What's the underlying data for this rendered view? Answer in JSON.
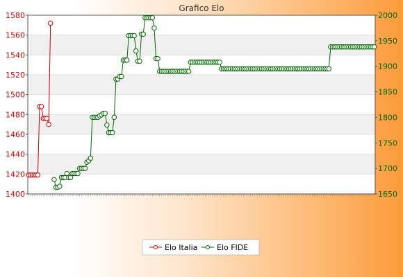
{
  "chart_data": {
    "type": "line",
    "title": "Grafico Elo",
    "xlabel": "",
    "ylabel": "",
    "grid": true,
    "legend": "bottom-center",
    "y_left": {
      "min": 1400,
      "max": 1580,
      "ticks": [
        1400,
        1420,
        1440,
        1460,
        1480,
        1500,
        1520,
        1540,
        1560,
        1580
      ],
      "color": "#cc0000"
    },
    "y_right": {
      "min": 1650,
      "max": 2000,
      "ticks": [
        1650,
        1700,
        1750,
        1800,
        1850,
        1900,
        1950,
        2000
      ],
      "color": "#006600"
    },
    "series": [
      {
        "name": "Elo Italia",
        "axis": "left",
        "color": "#cc0000",
        "values": [
          1419,
          1419,
          1419,
          1419,
          1419,
          1419,
          1488,
          1488,
          1476,
          1476,
          1476,
          1470,
          1572
        ]
      },
      {
        "name": "Elo FIDE",
        "axis": "right",
        "color": "#006600",
        "values": [
          null,
          null,
          null,
          null,
          null,
          null,
          null,
          null,
          null,
          null,
          null,
          null,
          null,
          null,
          1678,
          1663,
          1663,
          1665,
          1682,
          1682,
          1682,
          1690,
          1682,
          1682,
          1690,
          1690,
          1690,
          1690,
          1700,
          1700,
          1700,
          1700,
          1712,
          1715,
          1720,
          1800,
          1800,
          1800,
          1800,
          1803,
          1805,
          1808,
          1808,
          1785,
          1770,
          1770,
          1770,
          1800,
          1875,
          1875,
          1880,
          1880,
          1912,
          1912,
          1912,
          1960,
          1960,
          1960,
          1960,
          1930,
          1910,
          1910,
          1963,
          1963,
          1995,
          1995,
          1995,
          1995,
          1995,
          1975,
          1915,
          1915,
          1890,
          1890,
          1890,
          1890,
          1890,
          1890,
          1890,
          1890,
          1890,
          1890,
          1890,
          1890,
          1890,
          1890,
          1890,
          1890,
          1890,
          1908,
          1908,
          1908,
          1908,
          1908,
          1908,
          1908,
          1908,
          1908,
          1908,
          1908,
          1908,
          1908,
          1908,
          1908,
          1908,
          1908,
          1895,
          1895,
          1895,
          1895,
          1895,
          1895,
          1895,
          1895,
          1895,
          1895,
          1895,
          1895,
          1895,
          1895,
          1895,
          1895,
          1895,
          1895,
          1895,
          1895,
          1895,
          1895,
          1895,
          1895,
          1895,
          1895,
          1895,
          1895,
          1895,
          1895,
          1895,
          1895,
          1895,
          1895,
          1895,
          1895,
          1895,
          1895,
          1895,
          1895,
          1895,
          1895,
          1895,
          1895,
          1895,
          1895,
          1895,
          1895,
          1895,
          1895,
          1895,
          1895,
          1895,
          1895,
          1895,
          1895,
          1895,
          1895,
          1895,
          1895,
          1938,
          1938,
          1938,
          1938,
          1938,
          1938,
          1938,
          1938,
          1938,
          1938,
          1938,
          1938,
          1938,
          1938,
          1938,
          1938,
          1938,
          1938,
          1938,
          1938,
          1938,
          1938,
          1938,
          1938,
          1938
        ]
      }
    ]
  }
}
